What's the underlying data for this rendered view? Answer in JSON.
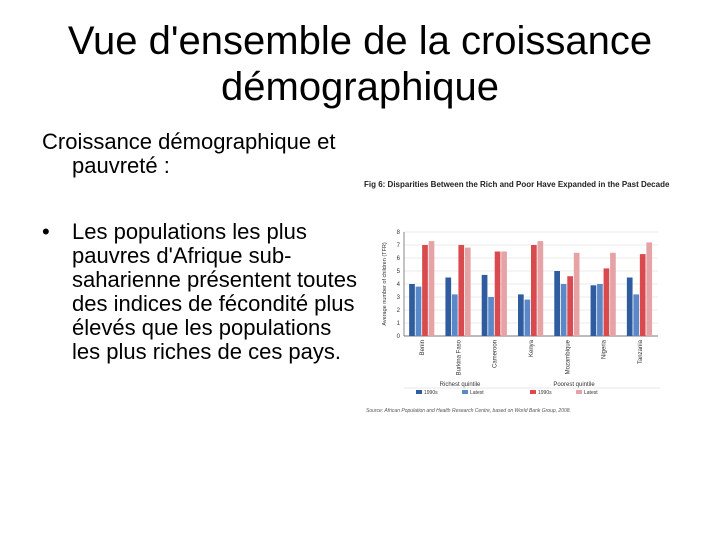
{
  "slide": {
    "title": "Vue d'ensemble de la croissance démographique",
    "intro": "Croissance démographique et pauvreté :",
    "bullet_mark": "•",
    "bullet": "Les populations les plus pauvres d'Afrique sub-saharienne présentent toutes des indices de fécondité plus élevés que les populations les plus riches de ces pays."
  },
  "figure": {
    "source": "Source: African Population and Health Research Centre, based on World Bank Group, 2008."
  },
  "chart_data": {
    "type": "bar",
    "title": "Fig 6: Disparities Between the Rich and Poor Have Expanded in the Past Decade",
    "ylabel": "Average number of children (TFR)",
    "ylim": [
      0,
      8
    ],
    "yticks": [
      0,
      1,
      2,
      3,
      4,
      5,
      6,
      7,
      8
    ],
    "categories": [
      "Benin",
      "Burkina Faso",
      "Cameroon",
      "Kenya",
      "Mozambique",
      "Nigeria",
      "Tanzania"
    ],
    "groups": [
      "Richest quintile",
      "Poorest quintile"
    ],
    "series": [
      {
        "name": "1990s",
        "group": "Richest quintile",
        "color": "#2e5c9e",
        "values": [
          4.0,
          4.5,
          4.7,
          3.2,
          5.0,
          3.9,
          4.5
        ]
      },
      {
        "name": "Latest",
        "group": "Richest quintile",
        "color": "#5b88c8",
        "values": [
          3.8,
          3.2,
          3.0,
          2.8,
          4.0,
          4.0,
          3.2
        ]
      },
      {
        "name": "1990s",
        "group": "Poorest quintile",
        "color": "#d94a4f",
        "values": [
          7.0,
          7.0,
          6.5,
          7.0,
          4.6,
          5.2,
          6.3
        ]
      },
      {
        "name": "Latest",
        "group": "Poorest quintile",
        "color": "#e6a3a6",
        "values": [
          7.3,
          6.8,
          6.5,
          7.3,
          6.4,
          6.4,
          7.2
        ]
      }
    ]
  }
}
